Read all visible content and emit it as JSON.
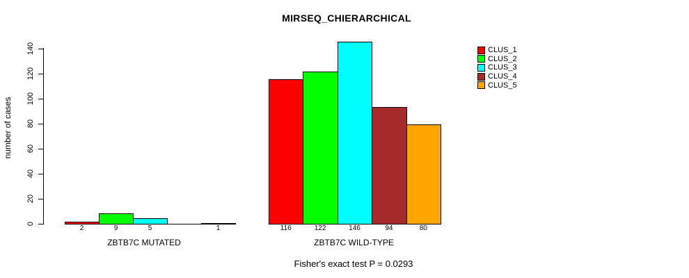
{
  "chart_data": {
    "type": "bar",
    "title": "MIRSEQ_CHIERARCHICAL",
    "ylabel": "number of cases",
    "annotation": "Fisher's exact test P = 0.0293",
    "ylim": [
      0,
      140
    ],
    "yticks": [
      0,
      20,
      40,
      60,
      80,
      100,
      120,
      140
    ],
    "grid": false,
    "legend_position": "top-right",
    "series": [
      {
        "name": "CLUS_1",
        "color": "#FF0000"
      },
      {
        "name": "CLUS_2",
        "color": "#00FF00"
      },
      {
        "name": "CLUS_3",
        "color": "#00FFFF"
      },
      {
        "name": "CLUS_4",
        "color": "#A52A2A"
      },
      {
        "name": "CLUS_5",
        "color": "#FFA500"
      }
    ],
    "groups": [
      {
        "label": "ZBTB7C MUTATED",
        "values": [
          2,
          9,
          5,
          0,
          1
        ],
        "value_labels": [
          "2",
          "9",
          "5",
          "",
          "1"
        ]
      },
      {
        "label": "ZBTB7C WILD-TYPE",
        "values": [
          116,
          122,
          146,
          94,
          80
        ],
        "value_labels": [
          "116",
          "122",
          "146",
          "94",
          "80"
        ]
      }
    ]
  }
}
